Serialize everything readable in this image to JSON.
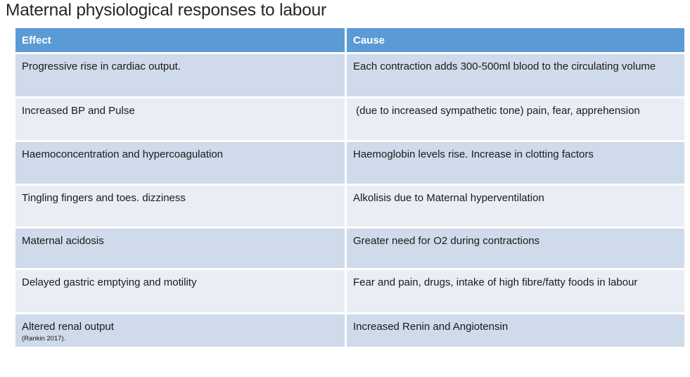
{
  "slide": {
    "title": "Maternal physiological responses to labour"
  },
  "table": {
    "columns": {
      "effect": "Effect",
      "cause": "Cause"
    },
    "rows": [
      {
        "effect": "Progressive rise in cardiac output.",
        "cause": "Each contraction adds 300-500ml blood to the circulating volume"
      },
      {
        "effect": "Increased BP and Pulse",
        "cause": " (due to increased sympathetic tone) pain, fear, apprehension"
      },
      {
        "effect": "Haemoconcentration and hypercoagulation",
        "cause": "Haemoglobin levels rise. Increase in clotting factors"
      },
      {
        "effect": "Tingling fingers and toes. dizziness",
        "cause": "Alkolisis due to Maternal hyperventilation"
      },
      {
        "effect": "Maternal acidosis",
        "cause": "Greater need for O2 during contractions"
      },
      {
        "effect": "Delayed gastric emptying and motility",
        "cause": "Fear and pain, drugs, intake of high fibre/fatty foods in labour"
      },
      {
        "effect": "Altered renal output",
        "effect_note": "(Rankin 2017).",
        "cause": "Increased Renin and Angiotensin"
      }
    ],
    "colors": {
      "header_bg": "#5b9bd5",
      "header_text": "#ffffff",
      "band_dark": "#cfdaea",
      "band_light": "#e9edf5",
      "body_text": "#1a1a1a"
    }
  }
}
